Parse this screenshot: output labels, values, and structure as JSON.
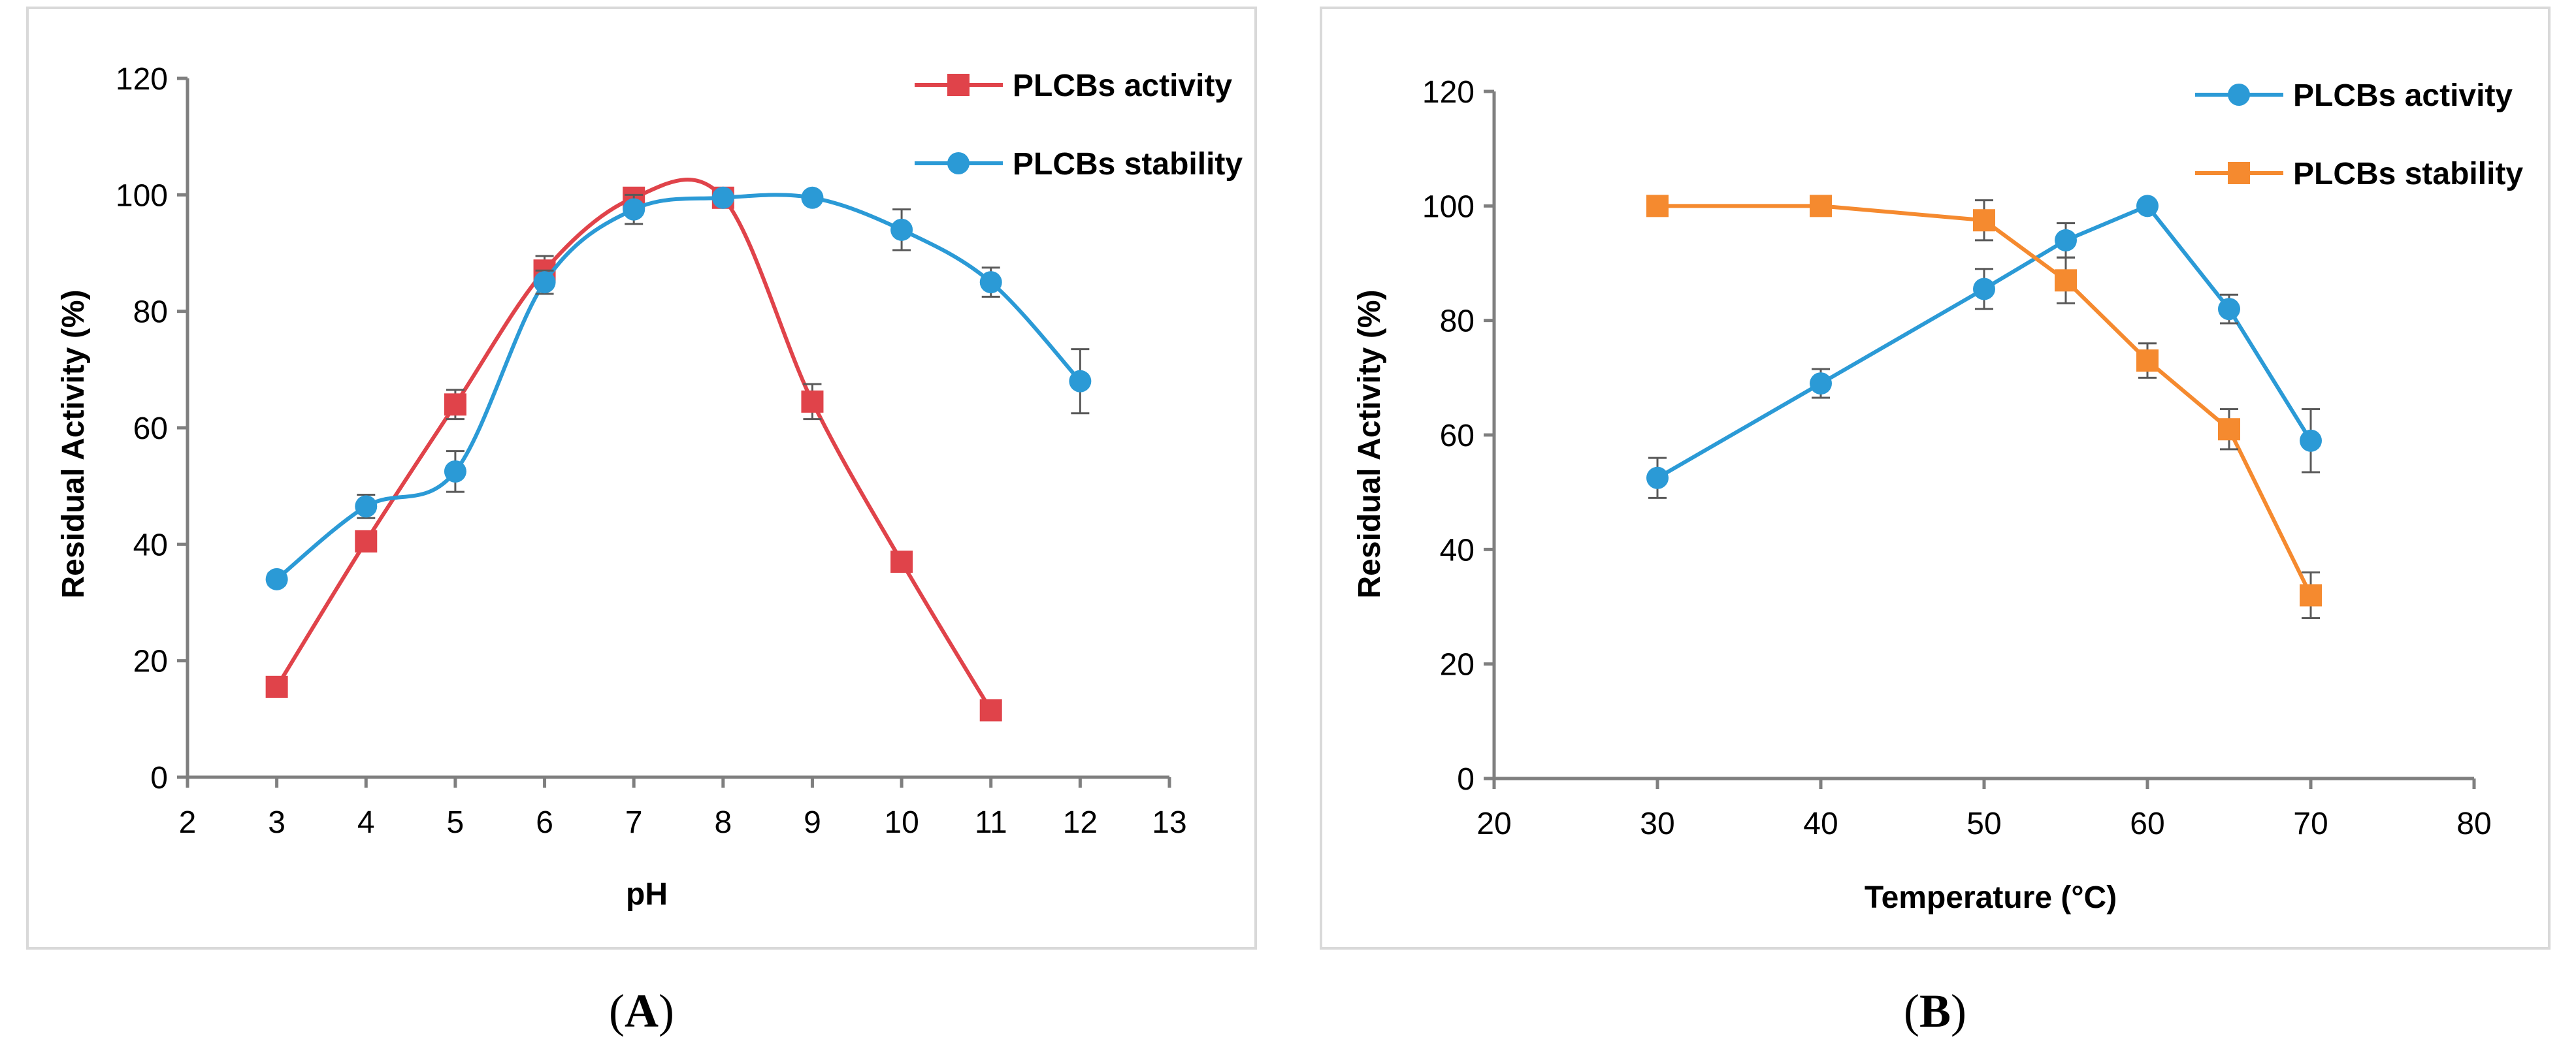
{
  "figure_labels": {
    "A": "A",
    "B": "B"
  },
  "colors": {
    "red": "#e0434a",
    "blue": "#2b9ad6",
    "orange": "#f58a2f",
    "axis": "#7f7f7f",
    "frame": "#d9d9d9",
    "errbar": "#595959"
  },
  "chart_data": [
    {
      "id": "A",
      "type": "line",
      "title": "",
      "xlabel": "pH",
      "ylabel": "Residual Activity (%)",
      "xlim": [
        2,
        13
      ],
      "ylim": [
        0,
        120
      ],
      "xticks": [
        2,
        3,
        4,
        5,
        6,
        7,
        8,
        9,
        10,
        11,
        12,
        13
      ],
      "yticks": [
        0,
        20,
        40,
        60,
        80,
        100,
        120
      ],
      "smooth": true,
      "legend": "top-right",
      "series": [
        {
          "name": "PLCBs activity",
          "marker": "square",
          "color": "#e0434a",
          "x": [
            3,
            4,
            5,
            6,
            7,
            8,
            9,
            10,
            11
          ],
          "y": [
            15.5,
            40.5,
            64,
            87,
            99.5,
            99.5,
            64.5,
            37,
            11.5
          ],
          "err": [
            0,
            1.5,
            2.5,
            2.5,
            1,
            0,
            3,
            0,
            1
          ]
        },
        {
          "name": "PLCBs stability",
          "marker": "circle",
          "color": "#2b9ad6",
          "x": [
            3,
            4,
            5,
            6,
            7,
            8,
            9,
            10,
            11,
            12
          ],
          "y": [
            34,
            46.5,
            52.5,
            85,
            97.5,
            99.5,
            99.5,
            94,
            85,
            68
          ],
          "err": [
            1,
            2,
            3.5,
            2,
            2.5,
            0,
            0.5,
            3.5,
            2.5,
            5.5
          ]
        }
      ]
    },
    {
      "id": "B",
      "type": "line",
      "title": "",
      "xlabel": "Temperature (°C)",
      "ylabel": "Residual Activity (%)",
      "xlim": [
        20,
        80
      ],
      "ylim": [
        0,
        120
      ],
      "xticks": [
        20,
        30,
        40,
        50,
        60,
        70,
        80
      ],
      "yticks": [
        0,
        20,
        40,
        60,
        80,
        100,
        120
      ],
      "smooth": false,
      "legend": "top-right",
      "series": [
        {
          "name": "PLCBs activity",
          "marker": "circle",
          "color": "#2b9ad6",
          "x": [
            30,
            40,
            50,
            55,
            60,
            65,
            70
          ],
          "y": [
            52.5,
            69,
            85.5,
            94,
            100,
            82,
            59
          ],
          "err": [
            3.5,
            2.5,
            3.5,
            3,
            0,
            2.5,
            5.5
          ]
        },
        {
          "name": "PLCBs stability",
          "marker": "square",
          "color": "#f58a2f",
          "x": [
            30,
            40,
            50,
            55,
            60,
            65,
            70
          ],
          "y": [
            100,
            100,
            97.5,
            87,
            73,
            61,
            32
          ],
          "err": [
            0,
            0,
            3.5,
            4,
            3,
            3.5,
            4
          ]
        }
      ]
    }
  ]
}
